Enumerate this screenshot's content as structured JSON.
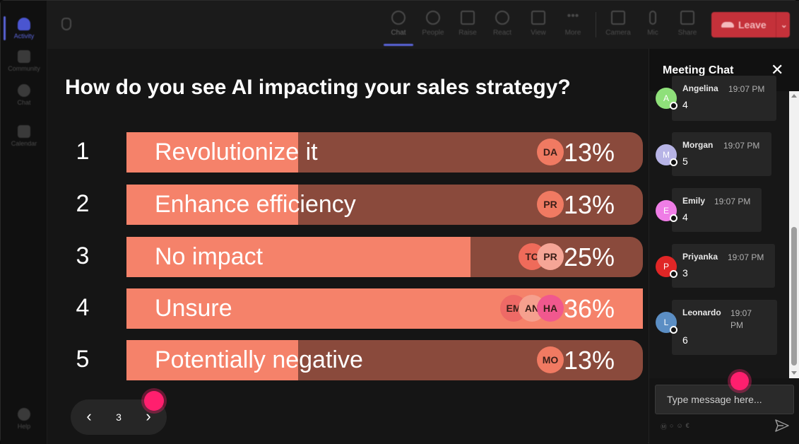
{
  "rail": [
    {
      "label": "Activity",
      "icon": "bell-icon",
      "active": true
    },
    {
      "label": "Community",
      "icon": "community-icon"
    },
    {
      "label": "Chat",
      "icon": "chat-icon"
    },
    {
      "label": "Calendar",
      "icon": "calendar-icon"
    },
    {
      "label": "Help",
      "icon": "help-icon"
    }
  ],
  "toolbar": {
    "chat": "Chat",
    "people": "People",
    "raise": "Raise",
    "react": "React",
    "view": "View",
    "more": "More",
    "camera": "Camera",
    "mic": "Mic",
    "share": "Share",
    "leave": "Leave"
  },
  "poll": {
    "question": "How do you see AI impacting your sales strategy?",
    "options": [
      {
        "num": "1",
        "label": "Revolutionize it",
        "pct_text": "13%",
        "fill": 0.333,
        "avatars": [
          "DA"
        ]
      },
      {
        "num": "2",
        "label": "Enhance efficiency",
        "pct_text": "13%",
        "fill": 0.333,
        "avatars": [
          "PR"
        ]
      },
      {
        "num": "3",
        "label": "No impact",
        "pct_text": "25%",
        "fill": 0.666,
        "avatars": [
          "TO",
          "PR"
        ]
      },
      {
        "num": "4",
        "label": "Unsure",
        "pct_text": "36%",
        "fill": 1.0,
        "avatars": [
          "EM",
          "AN",
          "HA"
        ]
      },
      {
        "num": "5",
        "label": "Potentially negative",
        "pct_text": "13%",
        "fill": 0.333,
        "avatars": [
          "MO"
        ]
      }
    ],
    "page": "3"
  },
  "chat": {
    "title": "Meeting Chat",
    "placeholder": "Type message here...",
    "messages": [
      {
        "name": "Angelina",
        "initial": "A",
        "time": "19:07 PM",
        "text": "4",
        "color": "#8fe07a"
      },
      {
        "name": "Morgan",
        "initial": "M",
        "time": "19:07 PM",
        "text": "5",
        "color": "#b7b4e6"
      },
      {
        "name": "Emily",
        "initial": "E",
        "time": "19:07 PM",
        "text": "4",
        "color": "#ef7de6"
      },
      {
        "name": "Priyanka",
        "initial": "P",
        "time": "19:07 PM",
        "text": "3",
        "color": "#e02626"
      },
      {
        "name": "Leonardo",
        "initial": "L",
        "time": "19:07 PM",
        "text": "6",
        "color": "#5b8ec4"
      }
    ]
  },
  "colors": {
    "bar_fill": "#f5826a",
    "bar_bg": "#8a4a3c",
    "leave": "#c4313a",
    "accent": "#5a64d8",
    "cursor": "#ff1f6e"
  }
}
